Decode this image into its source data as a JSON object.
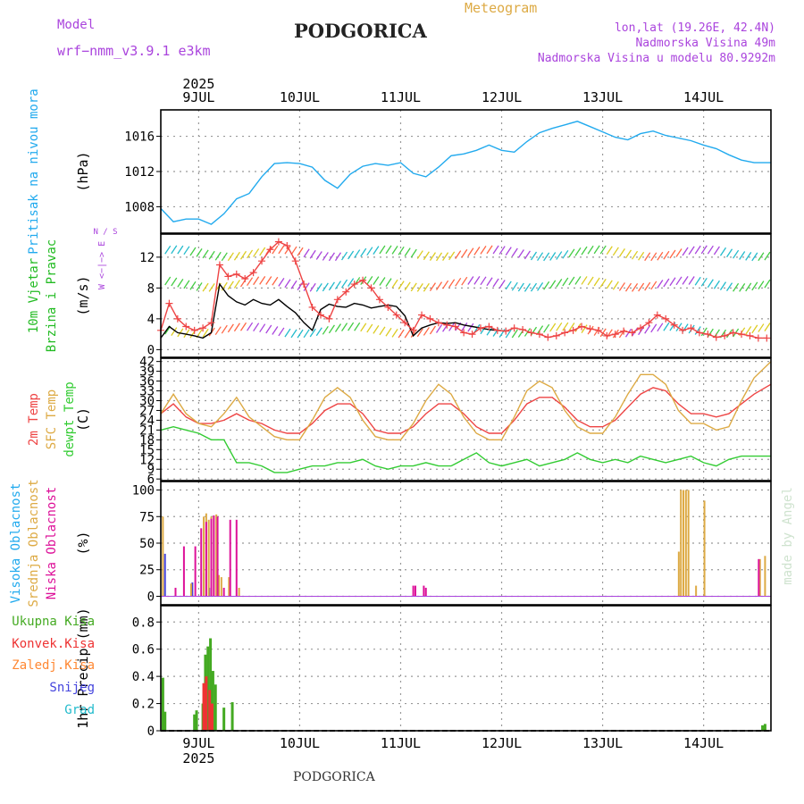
{
  "header": {
    "model_label": "Model",
    "model_name": "wrf−nmm_v3.9.1  e3km",
    "title": "PODGORICA",
    "subtitle": "Meteogram",
    "lonlat": "lon,lat (19.26E, 42.4N)",
    "altitude": "Nadmorska Visina 49m",
    "model_altitude": "Nadmorska Visina u modelu 80.9292m",
    "footer": "PODGORICA",
    "watermark": "made by Angel"
  },
  "colors": {
    "pressure": "#22aaee",
    "wind_label": "#22bb22",
    "temp2m": "#ee4444",
    "sfc": "#ddaa44",
    "dewpt": "#33cc33",
    "high_cloud": "#22aaee",
    "mid_cloud": "#ddaa44",
    "low_cloud": "#dd1199",
    "total_rain": "#44aa22",
    "conv_rain": "#ee3333",
    "freezing": "#ff8833",
    "snow": "#4444dd",
    "hail": "#22bbcc",
    "purple": "#aa44dd"
  },
  "chart_data": {
    "type": "meteogram",
    "x_axis": {
      "year": "2025",
      "ticks": [
        "9JUL",
        "10JUL",
        "11JUL",
        "12JUL",
        "13JUL",
        "14JUL"
      ],
      "range_hours": [
        -9,
        136
      ]
    },
    "panels": [
      {
        "id": "pressure",
        "type": "line",
        "ylabel": "(hPa)",
        "side_label": [
          "Pritisak na nivou mora"
        ],
        "ylim": [
          1005,
          1019
        ],
        "yticks": [
          1008,
          1012,
          1016
        ],
        "series": [
          {
            "name": "Pritisak na nivou mora",
            "x": [
              -9,
              -6,
              -3,
              0,
              3,
              6,
              9,
              12,
              15,
              18,
              21,
              24,
              27,
              30,
              33,
              36,
              39,
              42,
              45,
              48,
              51,
              54,
              57,
              60,
              63,
              66,
              69,
              72,
              75,
              78,
              81,
              84,
              87,
              90,
              93,
              96,
              99,
              102,
              105,
              108,
              111,
              114,
              117,
              120,
              123,
              126,
              129,
              132,
              136
            ],
            "values": [
              1007.8,
              1006.3,
              1006.6,
              1006.6,
              1006.0,
              1007.2,
              1008.9,
              1009.5,
              1011.4,
              1012.9,
              1013.0,
              1012.9,
              1012.5,
              1011.0,
              1010.1,
              1011.7,
              1012.6,
              1012.9,
              1012.7,
              1013.0,
              1011.8,
              1011.4,
              1012.5,
              1013.8,
              1014.0,
              1014.4,
              1015.0,
              1014.4,
              1014.2,
              1015.4,
              1016.4,
              1016.9,
              1017.3,
              1017.7,
              1017.1,
              1016.5,
              1015.9,
              1015.6,
              1016.3,
              1016.6,
              1016.1,
              1015.8,
              1015.5,
              1015.0,
              1014.6,
              1013.9,
              1013.3,
              1013.0,
              1013.0
            ]
          }
        ]
      },
      {
        "id": "wind",
        "type": "line",
        "ylabel": "(m/s)",
        "side_label": [
          "10m Vjetar",
          "Brzina i Pravac"
        ],
        "compass_label": "W <−|−> E",
        "compass_ns": "N / S",
        "ylim": [
          -1,
          15
        ],
        "yticks": [
          0,
          4,
          8,
          12
        ],
        "series": [
          {
            "name": "Brzina",
            "x": [
              -9,
              -7,
              -5,
              -3,
              -1,
              1,
              3,
              5,
              7,
              9,
              11,
              13,
              15,
              17,
              19,
              21,
              23,
              25,
              27,
              29,
              31,
              33,
              35,
              37,
              39,
              41,
              43,
              45,
              47,
              49,
              51,
              53,
              55,
              57,
              59,
              61,
              63,
              65,
              67,
              69,
              71,
              73
            ],
            "values": [
              1.5,
              3.0,
              2.2,
              2.0,
              1.8,
              1.5,
              2.2,
              8.5,
              7.0,
              6.2,
              5.8,
              6.5,
              6.0,
              5.8,
              6.5,
              5.6,
              4.8,
              3.5,
              2.5,
              5.2,
              5.9,
              5.6,
              5.5,
              6.0,
              5.8,
              5.4,
              5.6,
              5.8,
              5.6,
              4.4,
              1.8,
              2.8,
              3.2,
              3.5,
              3.4,
              3.5,
              3.2,
              3.0,
              2.8,
              2.6,
              2.5,
              2.4
            ]
          },
          {
            "name": "Udari",
            "x": [
              -9,
              -7,
              -5,
              -3,
              -1,
              1,
              3,
              5,
              7,
              9,
              11,
              13,
              15,
              17,
              19,
              21,
              23,
              25,
              27,
              29,
              31,
              33,
              35,
              37,
              39,
              41,
              43,
              45,
              47,
              49,
              51,
              53,
              55,
              57,
              59,
              61,
              63,
              65,
              67,
              69,
              71,
              73,
              75,
              77,
              79,
              81,
              83,
              85,
              87,
              89,
              91,
              93,
              95,
              97,
              99,
              101,
              103,
              105,
              107,
              109,
              111,
              113,
              115,
              117,
              119,
              121,
              123,
              125,
              127,
              129,
              131,
              133,
              135
            ],
            "values": [
              2.5,
              6.0,
              4.0,
              3.0,
              2.5,
              2.8,
              3.5,
              11.0,
              9.5,
              9.8,
              9.2,
              10.0,
              11.5,
              13.0,
              14.0,
              13.5,
              11.5,
              8.5,
              5.5,
              4.5,
              4.0,
              6.5,
              7.5,
              8.5,
              9.0,
              8.0,
              6.5,
              5.5,
              4.5,
              3.5,
              2.5,
              4.5,
              4.0,
              3.5,
              3.2,
              3.0,
              2.2,
              2.0,
              2.8,
              3.0,
              2.5,
              2.4,
              2.8,
              2.6,
              2.2,
              2.0,
              1.6,
              1.8,
              2.2,
              2.5,
              3.0,
              2.7,
              2.5,
              1.8,
              2.0,
              2.4,
              2.2,
              2.8,
              3.5,
              4.5,
              4.0,
              3.2,
              2.5,
              2.8,
              2.2,
              2.0,
              1.6,
              1.8,
              2.2,
              2.0,
              1.8,
              1.5,
              1.5
            ]
          }
        ],
        "barb_rows_ms": [
          12,
          8,
          2
        ]
      },
      {
        "id": "temperature",
        "type": "line",
        "ylabel": "(C)",
        "side_label": [
          "2m Temp",
          "SFC Temp",
          "dewpt Temp"
        ],
        "ylim": [
          5.5,
          43
        ],
        "yticks": [
          6,
          9,
          12,
          15,
          18,
          21,
          24,
          27,
          30,
          33,
          36,
          39,
          42
        ],
        "series": [
          {
            "name": "2m Temp",
            "x": [
              -9,
              -6,
              -3,
              0,
              3,
              6,
              9,
              12,
              15,
              18,
              21,
              24,
              27,
              30,
              33,
              36,
              39,
              42,
              45,
              48,
              51,
              54,
              57,
              60,
              63,
              66,
              69,
              72,
              75,
              78,
              81,
              84,
              87,
              90,
              93,
              96,
              99,
              102,
              105,
              108,
              111,
              114,
              117,
              120,
              123,
              126,
              129,
              132,
              136
            ],
            "values": [
              26,
              29,
              25,
              23,
              23,
              24,
              26,
              24,
              23,
              21,
              20,
              20,
              23,
              27,
              29,
              29,
              26,
              21,
              20,
              20,
              22,
              26,
              29,
              29,
              26,
              22,
              20,
              20,
              24,
              29,
              31,
              31,
              28,
              24,
              22,
              22,
              24,
              28,
              32,
              34,
              33,
              29,
              26,
              26,
              25,
              26,
              29,
              32,
              35
            ]
          },
          {
            "name": "SFC Temp",
            "x": [
              -9,
              -6,
              -3,
              0,
              3,
              6,
              9,
              12,
              15,
              18,
              21,
              24,
              27,
              30,
              33,
              36,
              39,
              42,
              45,
              48,
              51,
              54,
              57,
              60,
              63,
              66,
              69,
              72,
              75,
              78,
              81,
              84,
              87,
              90,
              93,
              96,
              99,
              102,
              105,
              108,
              111,
              114,
              117,
              120,
              123,
              126,
              129,
              132,
              136
            ],
            "values": [
              26,
              32,
              26,
              23,
              22,
              26,
              31,
              25,
              22,
              19,
              18,
              18,
              24,
              31,
              34,
              31,
              24,
              19,
              18,
              18,
              23,
              30,
              35,
              32,
              25,
              20,
              18,
              18,
              25,
              33,
              36,
              34,
              27,
              22,
              20,
              20,
              25,
              32,
              38,
              38,
              35,
              27,
              23,
              23,
              21,
              22,
              30,
              37,
              42
            ]
          },
          {
            "name": "dewpt Temp",
            "x": [
              -9,
              -6,
              -3,
              0,
              3,
              6,
              9,
              12,
              15,
              18,
              21,
              24,
              27,
              30,
              33,
              36,
              39,
              42,
              45,
              48,
              51,
              54,
              57,
              60,
              63,
              66,
              69,
              72,
              75,
              78,
              81,
              84,
              87,
              90,
              93,
              96,
              99,
              102,
              105,
              108,
              111,
              114,
              117,
              120,
              123,
              126,
              129,
              132,
              136
            ],
            "values": [
              21,
              22,
              21,
              20,
              18,
              18,
              11,
              11,
              10,
              8,
              8,
              9,
              10,
              10,
              11,
              11,
              12,
              10,
              9,
              10,
              10,
              11,
              10,
              10,
              12,
              14,
              11,
              10,
              11,
              12,
              10,
              11,
              12,
              14,
              12,
              11,
              12,
              11,
              13,
              12,
              11,
              12,
              13,
              11,
              10,
              12,
              13,
              13,
              13
            ]
          }
        ]
      },
      {
        "id": "clouds",
        "type": "bar",
        "ylabel": "(%)",
        "side_label": [
          "Visoka Oblacnost",
          "Srednja Oblacnost",
          "Niska Oblacnost"
        ],
        "ylim": [
          -8,
          108
        ],
        "yticks": [
          0,
          25,
          50,
          75,
          100
        ],
        "series": [
          {
            "name": "Visoka Oblacnost",
            "x": [
              -8,
              -1.5,
              1.2,
              2.5
            ],
            "values": [
              40,
              13,
              22,
              8
            ]
          },
          {
            "name": "Srednja Oblacnost",
            "x": [
              -8.5,
              -1.8,
              1.2,
              1.8,
              2.4,
              3.0,
              3.6,
              4.2,
              4.8,
              5.4,
              7.2,
              9.6,
              114.1,
              114.6,
              115.2,
              115.8,
              116.4,
              118.2,
              120.2,
              133.4,
              134.6
            ],
            "values": [
              75,
              12,
              75,
              78,
              72,
              75,
              76,
              77,
              20,
              18,
              18,
              8,
              42,
              100,
              100,
              100,
              100,
              10,
              90,
              35,
              38
            ]
          },
          {
            "name": "Niska Oblacnost",
            "x": [
              -5.5,
              -3.5,
              -0.8,
              0.6,
              1.8,
              3.0,
              3.6,
              4.5,
              6.0,
              7.5,
              9.0,
              51.0,
              51.5,
              53.5,
              54.0,
              133.1
            ],
            "values": [
              8,
              47,
              47,
              64,
              70,
              73,
              76,
              75,
              8,
              72,
              72,
              10,
              10,
              10,
              8,
              35
            ]
          }
        ]
      },
      {
        "id": "precip",
        "type": "bar",
        "ylabel": "1hr Precip (mm)",
        "side_label": [
          "Ukupna Kisa",
          "Konvek.Kisa",
          "Zaledj.Kisa",
          "Snijeg",
          "Grad"
        ],
        "ylim": [
          0,
          0.92
        ],
        "yticks": [
          0,
          0.2,
          0.4,
          0.6,
          0.8
        ],
        "series": [
          {
            "name": "Ukupna Kisa",
            "x": [
              -8.5,
              -8.0,
              -1.0,
              -0.5,
              1.0,
              1.6,
              2.2,
              2.8,
              3.4,
              4.0,
              6.0,
              8.0,
              134.0,
              134.6
            ],
            "values": [
              0.39,
              0.14,
              0.12,
              0.15,
              0.2,
              0.56,
              0.62,
              0.68,
              0.44,
              0.34,
              0.17,
              0.21,
              0.04,
              0.05
            ]
          },
          {
            "name": "Konvek.Kisa",
            "x": [
              1.2,
              1.8,
              2.6,
              3.2
            ],
            "values": [
              0.35,
              0.4,
              0.3,
              0.2
            ]
          },
          {
            "name": "Zaledj.Kisa",
            "x": [],
            "values": []
          },
          {
            "name": "Snijeg",
            "x": [],
            "values": []
          },
          {
            "name": "Grad",
            "x": [],
            "values": []
          }
        ]
      }
    ]
  }
}
